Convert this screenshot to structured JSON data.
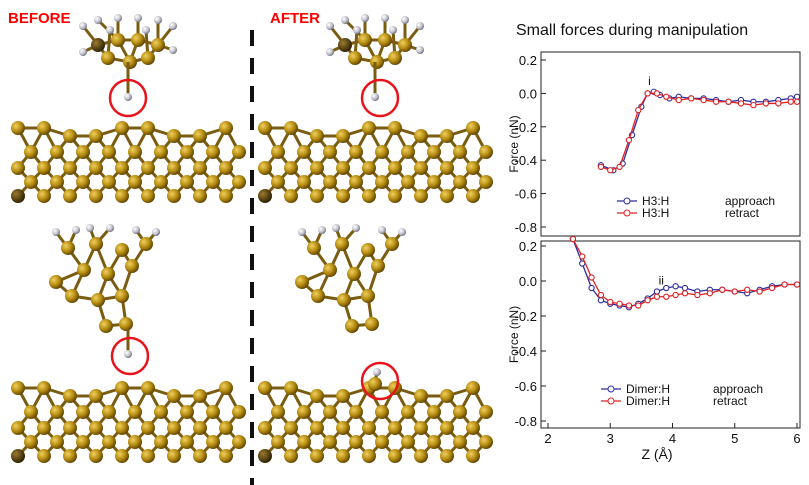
{
  "labels": {
    "before": "BEFORE",
    "after": "AFTER"
  },
  "figure_title": "Small forces during manipulation",
  "colors": {
    "atom_gold": "#b58c10",
    "atom_dark": "#6b4e00",
    "bond": "#7a5c10",
    "hydrogen": "#c8c8d4",
    "highlight": "#e8141b",
    "approach": "#2e2e9e",
    "retract": "#e02020",
    "divider": "#111111"
  },
  "chart_data": [
    {
      "type": "line",
      "id": "top",
      "ylabel": "Force (nN)",
      "xlabel": "",
      "xlim": [
        2,
        6
      ],
      "ylim": [
        -0.8,
        0.25
      ],
      "yticks": [
        0.2,
        0.0,
        -0.2,
        -0.4,
        -0.6,
        -0.8
      ],
      "ytick_labels": [
        "0.2",
        "0.0",
        "-0.2",
        "-0.4",
        "-0.6",
        "-0.8"
      ],
      "annotation": {
        "text": "i",
        "x": 3.63,
        "y": 0.05
      },
      "series": [
        {
          "name": "H3:H",
          "mode": "approach",
          "x": [
            2.85,
            3.05,
            3.2,
            3.35,
            3.5,
            3.6,
            3.7,
            3.8,
            3.95,
            4.1,
            4.3,
            4.5,
            4.7,
            4.9,
            5.1,
            5.3,
            5.5,
            5.7,
            5.9,
            6.0
          ],
          "y": [
            -0.43,
            -0.46,
            -0.42,
            -0.25,
            -0.08,
            0.0,
            0.01,
            -0.01,
            -0.03,
            -0.02,
            -0.03,
            -0.03,
            -0.04,
            -0.05,
            -0.04,
            -0.05,
            -0.05,
            -0.04,
            -0.03,
            -0.02
          ]
        },
        {
          "name": "H3:H",
          "mode": "retract",
          "x": [
            2.85,
            3.0,
            3.15,
            3.3,
            3.45,
            3.6,
            3.75,
            3.9,
            4.1,
            4.3,
            4.5,
            4.7,
            4.9,
            5.1,
            5.3,
            5.5,
            5.7,
            5.9,
            6.0
          ],
          "y": [
            -0.44,
            -0.46,
            -0.44,
            -0.28,
            -0.1,
            0.0,
            0.0,
            -0.02,
            -0.04,
            -0.03,
            -0.04,
            -0.05,
            -0.05,
            -0.06,
            -0.07,
            -0.06,
            -0.06,
            -0.05,
            -0.05
          ]
        }
      ],
      "legend": {
        "placement": "bottom-right",
        "entries": [
          {
            "name": "H3:H",
            "mode": "approach"
          },
          {
            "name": "H3:H",
            "mode": "retract"
          }
        ]
      }
    },
    {
      "type": "line",
      "id": "bottom",
      "ylabel": "Force (nN)",
      "xlabel": "Z (Å)",
      "xlim": [
        2,
        6
      ],
      "ylim": [
        -0.82,
        0.25
      ],
      "xticks": [
        2,
        3,
        4,
        5,
        6
      ],
      "xtick_labels": [
        "2",
        "3",
        "4",
        "5",
        "6"
      ],
      "yticks": [
        0.2,
        0.0,
        -0.2,
        -0.4,
        -0.6,
        -0.8
      ],
      "ytick_labels": [
        "0.2",
        "0.0",
        "-0.2",
        "-0.4",
        "-0.6",
        "-0.8"
      ],
      "annotation": {
        "text": "ii",
        "x": 3.82,
        "y": -0.02
      },
      "series": [
        {
          "name": "Dimer:H",
          "mode": "approach",
          "x": [
            2.4,
            2.55,
            2.7,
            2.85,
            3.0,
            3.15,
            3.3,
            3.45,
            3.6,
            3.75,
            3.9,
            4.05,
            4.2,
            4.4,
            4.6,
            4.8,
            5.0,
            5.2,
            5.4,
            5.6,
            5.8,
            6.0
          ],
          "y": [
            0.24,
            0.1,
            -0.04,
            -0.11,
            -0.13,
            -0.14,
            -0.15,
            -0.13,
            -0.1,
            -0.06,
            -0.04,
            -0.03,
            -0.04,
            -0.06,
            -0.05,
            -0.05,
            -0.06,
            -0.07,
            -0.05,
            -0.03,
            -0.02,
            -0.02
          ]
        },
        {
          "name": "Dimer:H",
          "mode": "retract",
          "x": [
            2.4,
            2.55,
            2.7,
            2.85,
            3.0,
            3.15,
            3.3,
            3.45,
            3.6,
            3.75,
            3.9,
            4.05,
            4.2,
            4.4,
            4.6,
            4.8,
            5.0,
            5.2,
            5.4,
            5.6,
            5.8,
            6.0
          ],
          "y": [
            0.24,
            0.14,
            0.02,
            -0.08,
            -0.12,
            -0.13,
            -0.14,
            -0.14,
            -0.11,
            -0.09,
            -0.09,
            -0.08,
            -0.07,
            -0.08,
            -0.07,
            -0.05,
            -0.06,
            -0.05,
            -0.06,
            -0.04,
            -0.02,
            -0.02
          ]
        }
      ],
      "legend": {
        "placement": "bottom-right",
        "entries": [
          {
            "name": "Dimer:H",
            "mode": "approach"
          },
          {
            "name": "Dimer:H",
            "mode": "retract"
          }
        ]
      }
    }
  ]
}
